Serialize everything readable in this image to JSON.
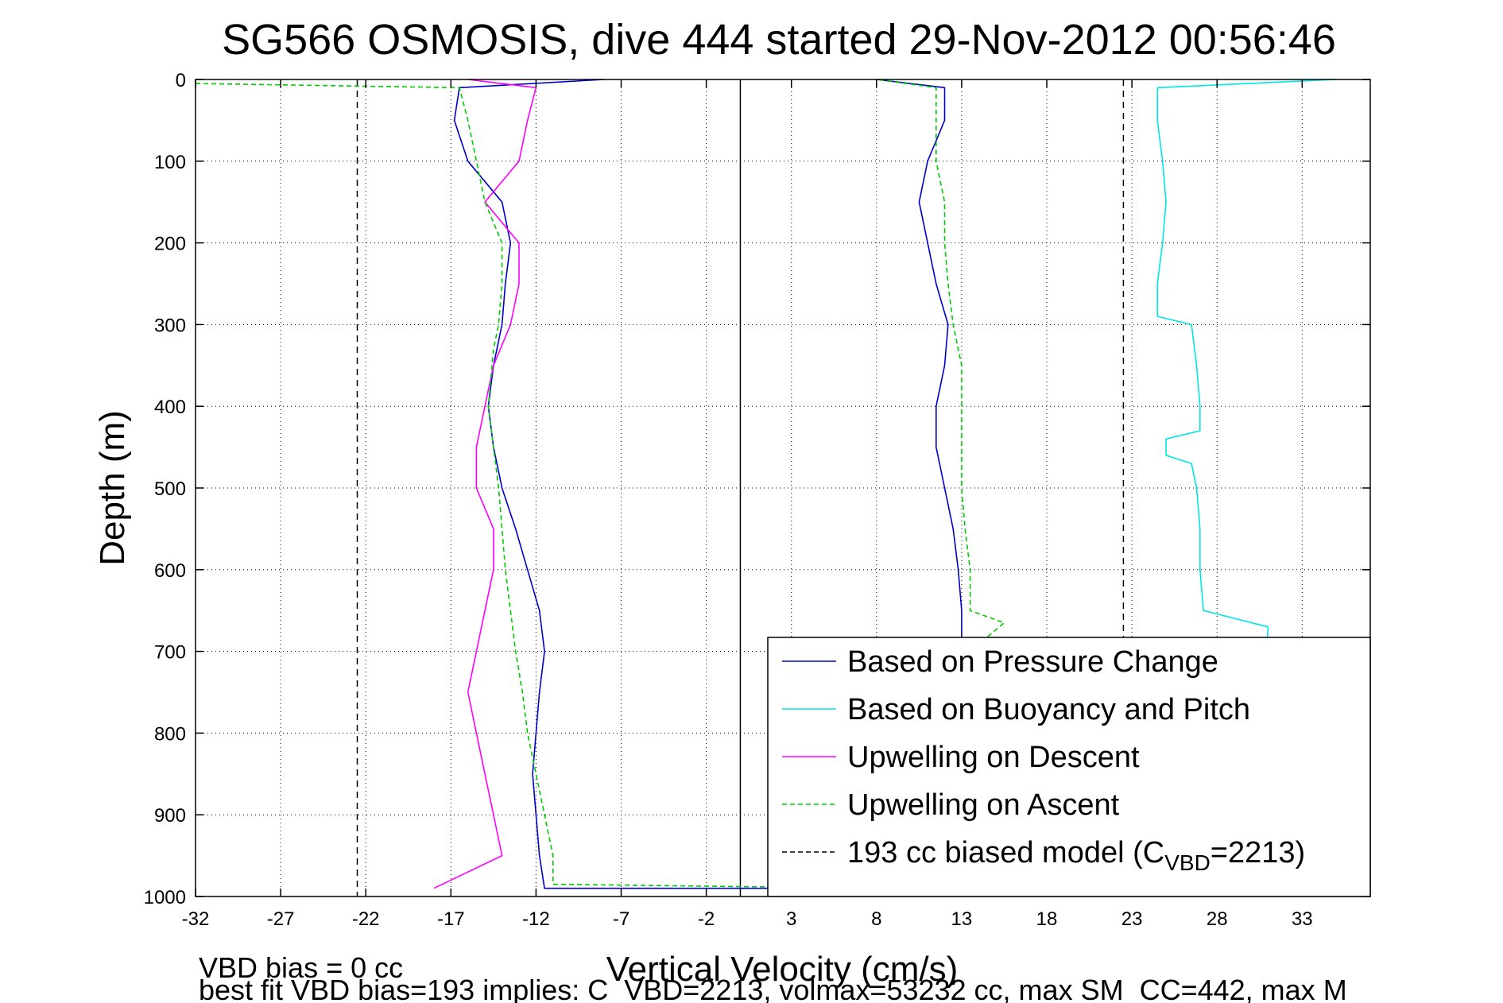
{
  "chart_data": {
    "type": "line",
    "title": "SG566 OSMOSIS, dive 444 started 29-Nov-2012 00:56:46",
    "xlabel": "Vertical Velocity (cm/s)",
    "ylabel": "Depth (m)",
    "xlim": [
      -32,
      37
    ],
    "ylim": [
      0,
      1000
    ],
    "y_reversed": true,
    "grid": true,
    "legend_position": "bottom-right",
    "x_ticks": [
      -32,
      -27,
      -22,
      -17,
      -12,
      -7,
      -2,
      3,
      8,
      13,
      18,
      23,
      28,
      33
    ],
    "y_ticks": [
      0,
      100,
      200,
      300,
      400,
      500,
      600,
      700,
      800,
      900,
      1000
    ],
    "reference_lines": [
      {
        "type": "vertical",
        "x": -22.5,
        "style": "dashed",
        "color": "#000000"
      },
      {
        "type": "vertical",
        "x": 22.5,
        "style": "dashed",
        "color": "#000000"
      },
      {
        "type": "vertical",
        "x": 0,
        "style": "solid",
        "color": "#000000"
      }
    ],
    "series": [
      {
        "name": "Based on Pressure Change",
        "color": "#0000cc",
        "style": "solid",
        "points": [
          {
            "depth": 0,
            "x": -8
          },
          {
            "depth": 10,
            "x": -16.5
          },
          {
            "depth": 50,
            "x": -16.8
          },
          {
            "depth": 100,
            "x": -16
          },
          {
            "depth": 150,
            "x": -14
          },
          {
            "depth": 200,
            "x": -13.5
          },
          {
            "depth": 250,
            "x": -13.8
          },
          {
            "depth": 300,
            "x": -14
          },
          {
            "depth": 350,
            "x": -14.5
          },
          {
            "depth": 400,
            "x": -14.8
          },
          {
            "depth": 450,
            "x": -14.5
          },
          {
            "depth": 500,
            "x": -14
          },
          {
            "depth": 550,
            "x": -13.2
          },
          {
            "depth": 600,
            "x": -12.5
          },
          {
            "depth": 650,
            "x": -11.8
          },
          {
            "depth": 700,
            "x": -11.5
          },
          {
            "depth": 750,
            "x": -11.8
          },
          {
            "depth": 800,
            "x": -12
          },
          {
            "depth": 850,
            "x": -12.2
          },
          {
            "depth": 900,
            "x": -12
          },
          {
            "depth": 950,
            "x": -11.8
          },
          {
            "depth": 990,
            "x": -11.5
          },
          {
            "depth": 990,
            "x": 10
          },
          {
            "depth": 950,
            "x": 11.5
          },
          {
            "depth": 900,
            "x": 12.2
          },
          {
            "depth": 850,
            "x": 12.5
          },
          {
            "depth": 800,
            "x": 12.7
          },
          {
            "depth": 750,
            "x": 12.8
          },
          {
            "depth": 700,
            "x": 13
          },
          {
            "depth": 650,
            "x": 13
          },
          {
            "depth": 600,
            "x": 12.8
          },
          {
            "depth": 550,
            "x": 12.5
          },
          {
            "depth": 500,
            "x": 12
          },
          {
            "depth": 450,
            "x": 11.5
          },
          {
            "depth": 400,
            "x": 11.5
          },
          {
            "depth": 350,
            "x": 12
          },
          {
            "depth": 300,
            "x": 12.2
          },
          {
            "depth": 250,
            "x": 11.5
          },
          {
            "depth": 200,
            "x": 11
          },
          {
            "depth": 150,
            "x": 10.5
          },
          {
            "depth": 100,
            "x": 11
          },
          {
            "depth": 50,
            "x": 12
          },
          {
            "depth": 10,
            "x": 12
          },
          {
            "depth": 0,
            "x": 8
          }
        ]
      },
      {
        "name": "Based on Buoyancy and Pitch",
        "color": "#00e5e5",
        "style": "solid",
        "points": [
          {
            "depth": 0,
            "x": 35
          },
          {
            "depth": 10,
            "x": 24.5
          },
          {
            "depth": 50,
            "x": 24.5
          },
          {
            "depth": 100,
            "x": 24.8
          },
          {
            "depth": 150,
            "x": 25
          },
          {
            "depth": 200,
            "x": 24.8
          },
          {
            "depth": 250,
            "x": 24.5
          },
          {
            "depth": 290,
            "x": 24.5
          },
          {
            "depth": 300,
            "x": 26.5
          },
          {
            "depth": 350,
            "x": 26.8
          },
          {
            "depth": 400,
            "x": 27
          },
          {
            "depth": 430,
            "x": 27
          },
          {
            "depth": 440,
            "x": 25
          },
          {
            "depth": 460,
            "x": 25
          },
          {
            "depth": 470,
            "x": 26.5
          },
          {
            "depth": 500,
            "x": 26.8
          },
          {
            "depth": 550,
            "x": 27
          },
          {
            "depth": 600,
            "x": 27
          },
          {
            "depth": 650,
            "x": 27.2
          },
          {
            "depth": 670,
            "x": 31
          },
          {
            "depth": 990,
            "x": 30
          }
        ]
      },
      {
        "name": "Upwelling on Descent",
        "color": "#ff00ff",
        "style": "solid",
        "points": [
          {
            "depth": 0,
            "x": -16
          },
          {
            "depth": 10,
            "x": -12
          },
          {
            "depth": 50,
            "x": -12.5
          },
          {
            "depth": 100,
            "x": -13
          },
          {
            "depth": 150,
            "x": -15
          },
          {
            "depth": 200,
            "x": -13
          },
          {
            "depth": 250,
            "x": -13
          },
          {
            "depth": 300,
            "x": -13.5
          },
          {
            "depth": 350,
            "x": -14.5
          },
          {
            "depth": 400,
            "x": -15
          },
          {
            "depth": 450,
            "x": -15.5
          },
          {
            "depth": 500,
            "x": -15.5
          },
          {
            "depth": 550,
            "x": -14.5
          },
          {
            "depth": 600,
            "x": -14.5
          },
          {
            "depth": 650,
            "x": -15
          },
          {
            "depth": 700,
            "x": -15.5
          },
          {
            "depth": 750,
            "x": -16
          },
          {
            "depth": 800,
            "x": -15.5
          },
          {
            "depth": 850,
            "x": -15
          },
          {
            "depth": 900,
            "x": -14.5
          },
          {
            "depth": 950,
            "x": -14
          },
          {
            "depth": 990,
            "x": -18
          }
        ]
      },
      {
        "name": "Upwelling on Ascent",
        "color": "#00cc00",
        "style": "dashed",
        "points": [
          {
            "depth": 5,
            "x": -32
          },
          {
            "depth": 10,
            "x": -16.5
          },
          {
            "depth": 50,
            "x": -16
          },
          {
            "depth": 100,
            "x": -15.5
          },
          {
            "depth": 150,
            "x": -15
          },
          {
            "depth": 200,
            "x": -14
          },
          {
            "depth": 250,
            "x": -14
          },
          {
            "depth": 300,
            "x": -14.2
          },
          {
            "depth": 330,
            "x": -14.5
          },
          {
            "depth": 400,
            "x": -14.8
          },
          {
            "depth": 450,
            "x": -14.5
          },
          {
            "depth": 500,
            "x": -14.2
          },
          {
            "depth": 550,
            "x": -14
          },
          {
            "depth": 600,
            "x": -13.8
          },
          {
            "depth": 650,
            "x": -13.5
          },
          {
            "depth": 700,
            "x": -13.2
          },
          {
            "depth": 750,
            "x": -12.8
          },
          {
            "depth": 800,
            "x": -12.5
          },
          {
            "depth": 850,
            "x": -12
          },
          {
            "depth": 900,
            "x": -11.5
          },
          {
            "depth": 950,
            "x": -11
          },
          {
            "depth": 985,
            "x": -11
          },
          {
            "depth": 990,
            "x": 8
          },
          {
            "depth": 950,
            "x": 12
          },
          {
            "depth": 900,
            "x": 12.5
          },
          {
            "depth": 850,
            "x": 12.8
          },
          {
            "depth": 800,
            "x": 13
          },
          {
            "depth": 750,
            "x": 13.2
          },
          {
            "depth": 700,
            "x": 13.5
          },
          {
            "depth": 665,
            "x": 15.5
          },
          {
            "depth": 650,
            "x": 13.5
          },
          {
            "depth": 600,
            "x": 13.5
          },
          {
            "depth": 550,
            "x": 13.2
          },
          {
            "depth": 500,
            "x": 13
          },
          {
            "depth": 450,
            "x": 13
          },
          {
            "depth": 400,
            "x": 13
          },
          {
            "depth": 350,
            "x": 13
          },
          {
            "depth": 300,
            "x": 12.5
          },
          {
            "depth": 250,
            "x": 12.2
          },
          {
            "depth": 200,
            "x": 12
          },
          {
            "depth": 150,
            "x": 12
          },
          {
            "depth": 100,
            "x": 11.5
          },
          {
            "depth": 50,
            "x": 11.5
          },
          {
            "depth": 10,
            "x": 11.5
          },
          {
            "depth": 0,
            "x": 8
          }
        ]
      }
    ],
    "legend": [
      {
        "label": "Based on Pressure Change",
        "color": "#0000cc",
        "style": "solid"
      },
      {
        "label": "Based on Buoyancy and Pitch",
        "color": "#00e5e5",
        "style": "solid"
      },
      {
        "label": "Upwelling on Descent",
        "color": "#ff00ff",
        "style": "solid"
      },
      {
        "label": "Upwelling on Ascent",
        "color": "#00cc00",
        "style": "dashed"
      },
      {
        "label": "193 cc biased model (C",
        "sub": "VBD",
        "suffix": "=2213)",
        "color": "#000000",
        "style": "dashed"
      }
    ],
    "footer": [
      "VBD bias = 0 cc",
      "best fit VBD bias=193 implies: C_VBD=2213, volmax=53232 cc, max SM_CC=442, max M"
    ]
  }
}
